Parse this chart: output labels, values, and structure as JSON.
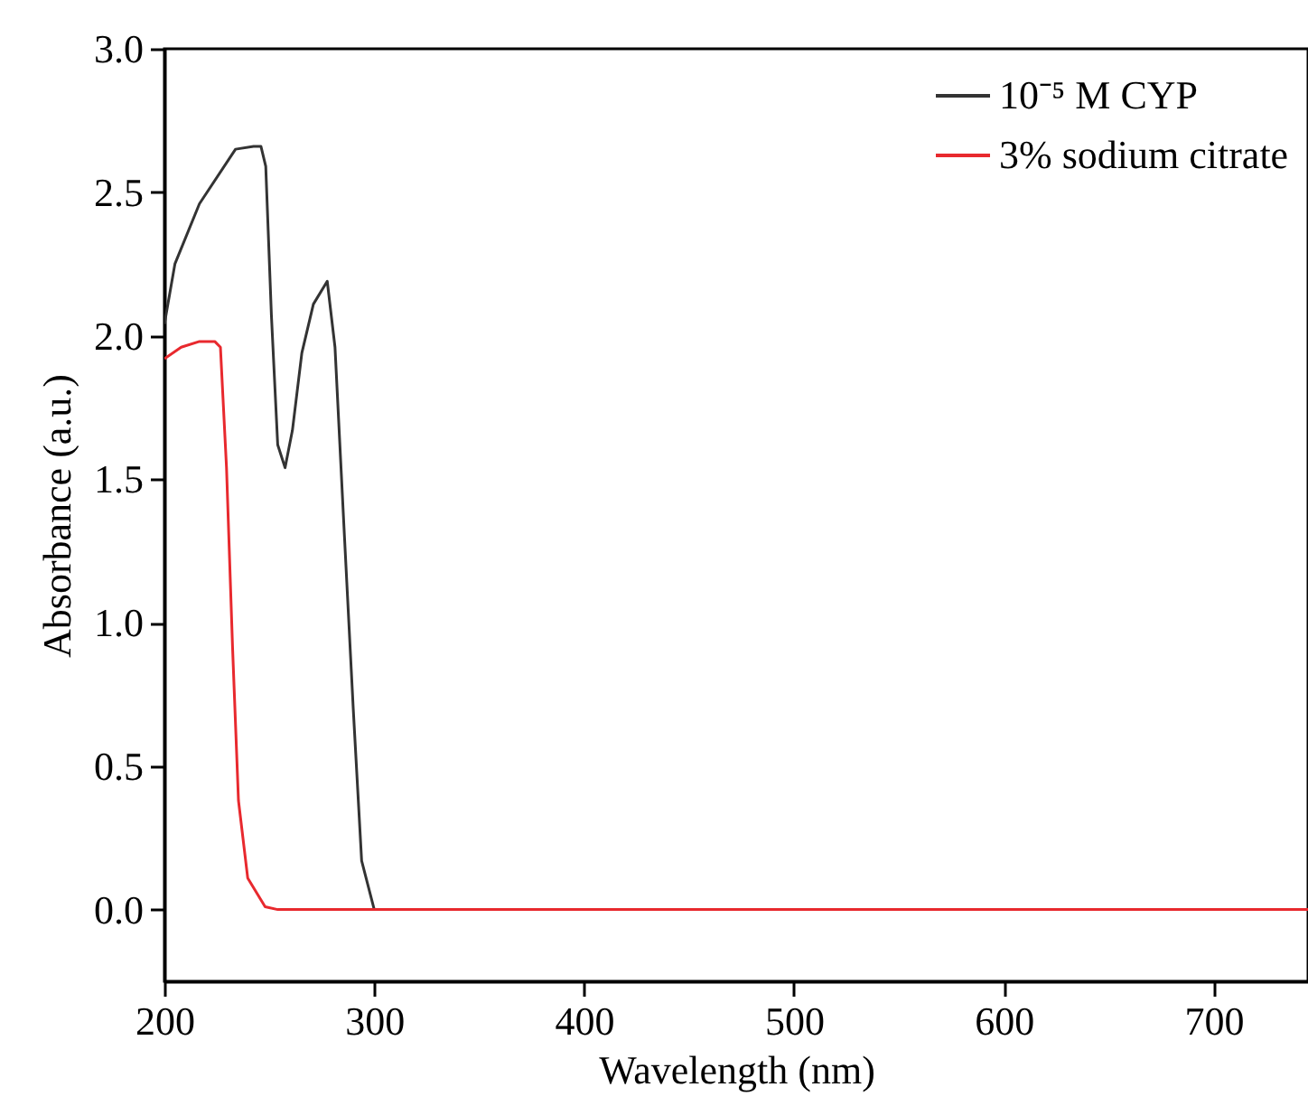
{
  "chart_data": {
    "type": "line",
    "xlabel": "Wavelength (nm)",
    "ylabel": "Absorbance (a.u.)",
    "xlim": [
      200,
      745
    ],
    "xticks": [
      200,
      300,
      400,
      500,
      600,
      700
    ],
    "ylim": [
      -0.25,
      3.0
    ],
    "yticks": [
      {
        "value": 0,
        "label": "0.0"
      },
      0.5,
      {
        "value": 1,
        "label": "1.0"
      },
      1.5,
      {
        "value": 2,
        "label": "2.0"
      },
      2.5,
      {
        "value": 3,
        "label": "3.0"
      }
    ],
    "grid": false,
    "legend": "top right",
    "marker": "none",
    "line_style": "solid",
    "series": [
      {
        "name": "10⁻⁵ M CYP",
        "color": "#333333",
        "x": [
          200,
          205,
          216.7,
          233.9,
          242.5,
          246,
          248.3,
          251,
          254,
          257.5,
          261,
          265.5,
          271,
          277.6,
          281.3,
          285.6,
          290,
          294,
          300,
          350,
          400,
          450,
          500,
          550,
          600,
          650,
          700,
          745
        ],
        "values": [
          2.04,
          2.25,
          2.46,
          2.65,
          2.66,
          2.66,
          2.59,
          2.07,
          1.62,
          1.54,
          1.67,
          1.94,
          2.11,
          2.19,
          1.96,
          1.33,
          0.7,
          0.17,
          0.0,
          0.0,
          0.0,
          0.0,
          0.0,
          0.0,
          0.0,
          0.0,
          0.0,
          0.0
        ]
      },
      {
        "name": "3% sodium citrate",
        "color": "#e8292e",
        "x": [
          200,
          208,
          216.7,
          224,
          226.7,
          229.6,
          232.5,
          235.3,
          239.7,
          248,
          254,
          300,
          350,
          400,
          450,
          500,
          550,
          600,
          650,
          700,
          745
        ],
        "values": [
          1.92,
          1.96,
          1.98,
          1.98,
          1.96,
          1.54,
          0.91,
          0.38,
          0.11,
          0.01,
          0.0,
          0.0,
          0.0,
          0.0,
          0.0,
          0.0,
          0.0,
          0.0,
          0.0,
          0.0,
          0.0
        ]
      }
    ]
  }
}
